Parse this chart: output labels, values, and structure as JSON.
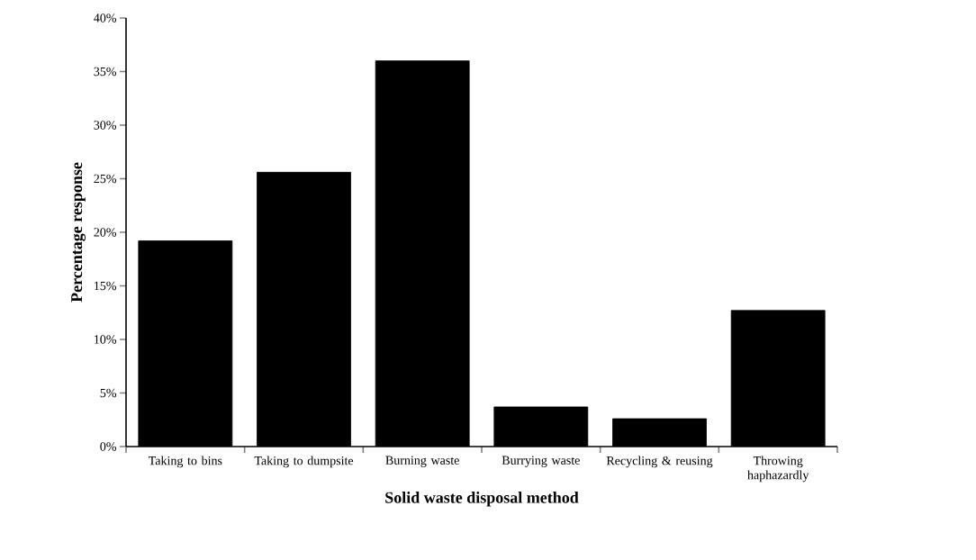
{
  "chart_data": {
    "type": "bar",
    "xlabel": "Solid waste disposal method",
    "ylabel": "Percentage response",
    "categories": [
      "Taking to bins",
      "Taking to dumpsite",
      "Burning waste",
      "Burrying waste",
      "Recycling & reusing",
      "Throwing haphazardly"
    ],
    "values": [
      19.2,
      25.6,
      36.0,
      3.7,
      2.6,
      12.7
    ],
    "color": "#000000",
    "ylim": [
      0,
      40
    ],
    "yticks": [
      {
        "value": 0,
        "label": "0%"
      },
      {
        "value": 5,
        "label": "5%"
      },
      {
        "value": 10,
        "label": "10%"
      },
      {
        "value": 15,
        "label": "15%"
      },
      {
        "value": 20,
        "label": "20%"
      },
      {
        "value": 25,
        "label": "25%"
      },
      {
        "value": 30,
        "label": "30%"
      },
      {
        "value": 35,
        "label": "35%"
      },
      {
        "value": 40,
        "label": "40%"
      }
    ],
    "grid": false
  }
}
